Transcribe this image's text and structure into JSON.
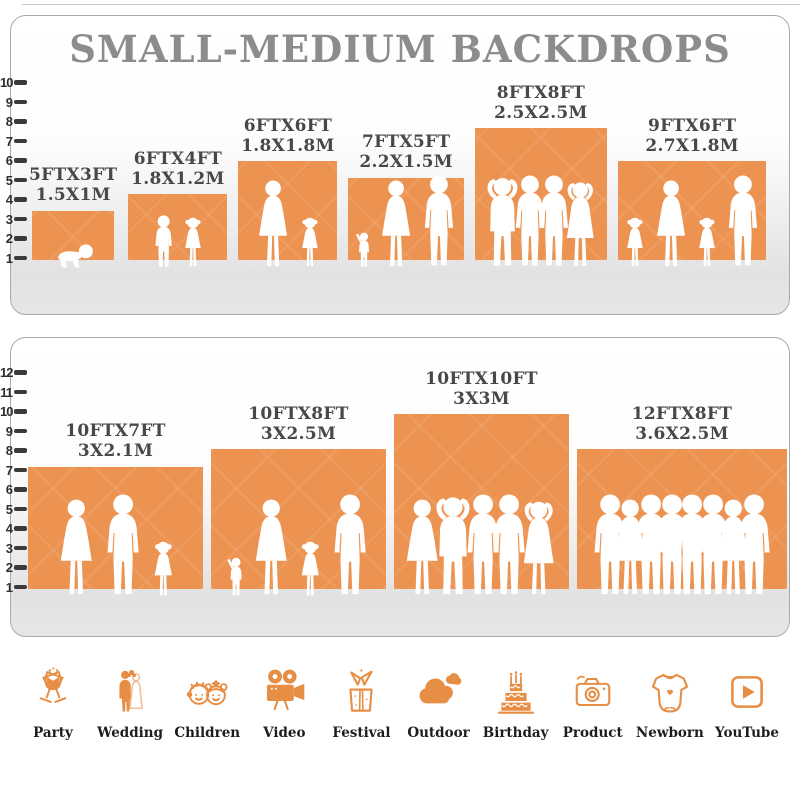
{
  "chart_data": {
    "type": "bar",
    "title": "SMALL-MEDIUM BACKDROPS",
    "panels": [
      {
        "name": "small-medium-top",
        "axis": {
          "unit": "FT",
          "ticks": [
            1,
            2,
            3,
            4,
            5,
            6,
            7,
            8,
            9,
            10
          ]
        },
        "backdrops": [
          {
            "label_ft": "5FTX3FT",
            "label_m": "1.5X1M",
            "width_ft": 5,
            "height_ft": 3,
            "figures": [
              "baby"
            ]
          },
          {
            "label_ft": "6FTX4FT",
            "label_m": "1.8X1.2M",
            "width_ft": 6,
            "height_ft": 4,
            "figures": [
              "boy",
              "girl"
            ]
          },
          {
            "label_ft": "6FTX6FT",
            "label_m": "1.8X1.8M",
            "width_ft": 6,
            "height_ft": 6,
            "figures": [
              "woman",
              "girl"
            ]
          },
          {
            "label_ft": "7FTX5FT",
            "label_m": "2.2X1.5M",
            "width_ft": 7,
            "height_ft": 5,
            "figures": [
              "toddler",
              "woman",
              "man"
            ]
          },
          {
            "label_ft": "8FTX8FT",
            "label_m": "2.5X2.5M",
            "width_ft": 8,
            "height_ft": 8,
            "figures": [
              "man-armsup",
              "man",
              "man-hips",
              "woman-armsup"
            ]
          },
          {
            "label_ft": "9FTX6FT",
            "label_m": "2.7X1.8M",
            "width_ft": 9,
            "height_ft": 6,
            "figures": [
              "girl",
              "woman",
              "girl",
              "man"
            ]
          }
        ]
      },
      {
        "name": "small-medium-bottom",
        "axis": {
          "unit": "FT",
          "ticks": [
            1,
            2,
            3,
            4,
            5,
            6,
            7,
            8,
            9,
            10,
            11,
            12
          ]
        },
        "backdrops": [
          {
            "label_ft": "10FTX7FT",
            "label_m": "3X2.1M",
            "width_ft": 10,
            "height_ft": 7,
            "figures": [
              "woman",
              "man",
              "girl"
            ]
          },
          {
            "label_ft": "10FTX8FT",
            "label_m": "3X2.5M",
            "width_ft": 10,
            "height_ft": 8,
            "figures": [
              "toddler",
              "woman",
              "girl",
              "man"
            ]
          },
          {
            "label_ft": "10FTX10FT",
            "label_m": "3X3M",
            "width_ft": 10,
            "height_ft": 10,
            "figures": [
              "woman",
              "man-armsup",
              "man",
              "man-hips",
              "woman-armsup"
            ]
          },
          {
            "label_ft": "12FTX8FT",
            "label_m": "3.6X2.5M",
            "width_ft": 12,
            "height_ft": 8,
            "figures": [
              "man",
              "woman",
              "man",
              "man",
              "man",
              "man",
              "woman",
              "man"
            ]
          }
        ]
      }
    ]
  },
  "categories": [
    {
      "label": "Party",
      "icon": "party-icon"
    },
    {
      "label": "Wedding",
      "icon": "wedding-icon"
    },
    {
      "label": "Children",
      "icon": "children-icon"
    },
    {
      "label": "Video",
      "icon": "video-icon"
    },
    {
      "label": "Festival",
      "icon": "festival-icon"
    },
    {
      "label": "Outdoor",
      "icon": "outdoor-icon"
    },
    {
      "label": "Birthday",
      "icon": "birthday-icon"
    },
    {
      "label": "Product",
      "icon": "product-icon"
    },
    {
      "label": "Newborn",
      "icon": "newborn-icon"
    },
    {
      "label": "YouTube",
      "icon": "youtube-icon"
    }
  ],
  "colors": {
    "backdrop_orange": "#EC9351",
    "icon_orange": "#E78E45",
    "title_gray": "#8C8C8C",
    "label_dark": "#484848",
    "ruler_dark": "#3A3A3A"
  }
}
